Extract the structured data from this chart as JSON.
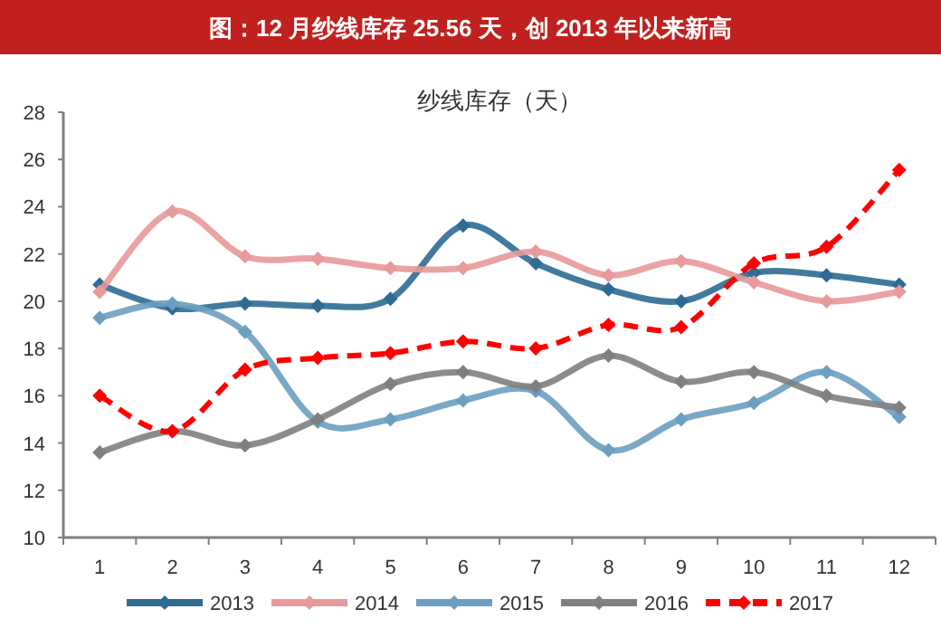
{
  "chart_data": {
    "type": "line",
    "title": "图：12 月纱线库存 25.56 天，创 2013 年以来新高",
    "subtitle": "纱线库存（天）",
    "categories": [
      "1",
      "2",
      "3",
      "4",
      "5",
      "6",
      "7",
      "8",
      "9",
      "10",
      "11",
      "12"
    ],
    "series": [
      {
        "name": "2013",
        "color": "#2e6b93",
        "values": [
          20.7,
          19.7,
          19.9,
          19.8,
          20.1,
          23.2,
          21.6,
          20.5,
          20.0,
          21.2,
          21.1,
          20.7
        ]
      },
      {
        "name": "2014",
        "color": "#e8999a",
        "values": [
          20.4,
          23.8,
          21.9,
          21.8,
          21.4,
          21.4,
          22.1,
          21.1,
          21.7,
          20.8,
          20.0,
          20.4
        ]
      },
      {
        "name": "2015",
        "color": "#6b9fc0",
        "values": [
          19.3,
          19.9,
          18.7,
          14.9,
          15.0,
          15.8,
          16.2,
          13.7,
          15.0,
          15.7,
          17.0,
          15.1
        ]
      },
      {
        "name": "2016",
        "color": "#808080",
        "values": [
          13.6,
          14.5,
          13.9,
          15.0,
          16.5,
          17.0,
          16.4,
          17.7,
          16.6,
          17.0,
          16.0,
          15.5
        ]
      },
      {
        "name": "2017",
        "color": "#ff0000",
        "line_style": "dashed",
        "values": [
          16.0,
          14.5,
          17.1,
          17.6,
          17.8,
          18.3,
          18.0,
          19.0,
          18.9,
          21.6,
          22.3,
          25.56
        ]
      }
    ],
    "ylim": [
      10,
      28
    ],
    "yticks": [
      10,
      12,
      14,
      16,
      18,
      20,
      22,
      24,
      26,
      28
    ],
    "grid": false,
    "legend": "bottom",
    "marker": "diamond",
    "line_style": "solid"
  }
}
